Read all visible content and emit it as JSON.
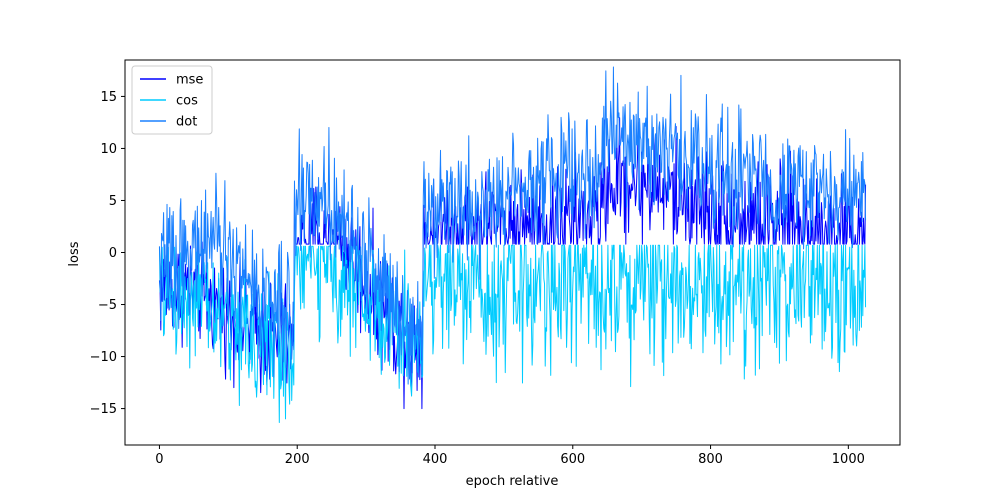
{
  "chart_data": {
    "type": "line",
    "title": "",
    "xlabel": "epoch relative",
    "ylabel": "loss",
    "xlim": [
      -50,
      1075
    ],
    "ylim": [
      -18.5,
      18.5
    ],
    "xticks": [
      0,
      200,
      400,
      600,
      800,
      1000
    ],
    "yticks": [
      -15,
      -10,
      -5,
      0,
      5,
      10,
      15
    ],
    "grid": false,
    "legend": "upper left",
    "x_range": [
      0,
      1025
    ],
    "series": [
      {
        "name": "mse",
        "color": "#0000ff",
        "envelope": {
          "x": [
            0,
            50,
            100,
            150,
            195,
            196,
            260,
            300,
            350,
            382,
            383,
            450,
            500,
            550,
            600,
            640,
            645,
            700,
            750,
            800,
            850,
            900,
            950,
            1000,
            1025
          ],
          "center": [
            -3.5,
            -3.5,
            -6.0,
            -8.0,
            -9.0,
            1.5,
            1.0,
            -3.0,
            -7.5,
            -8.5,
            2.0,
            2.5,
            2.5,
            2.5,
            3.0,
            3.5,
            6.5,
            7.0,
            5.5,
            4.0,
            3.0,
            2.5,
            2.5,
            2.0,
            1.5
          ],
          "spread": [
            3.0,
            3.0,
            3.0,
            3.5,
            3.5,
            3.5,
            3.5,
            3.5,
            3.5,
            3.5,
            3.5,
            3.5,
            3.5,
            3.5,
            3.5,
            3.5,
            3.5,
            3.5,
            3.5,
            3.5,
            3.5,
            3.5,
            3.5,
            3.5,
            3.5
          ],
          "clip_min": [
            -15,
            -15,
            -15,
            -15,
            -15,
            0.8,
            0.8,
            -15,
            -15,
            -15,
            0.8,
            0.8,
            0.8,
            0.8,
            0.8,
            0.8,
            0.8,
            0.8,
            0.8,
            0.8,
            0.8,
            0.8,
            0.8,
            0.8,
            0.8
          ]
        }
      },
      {
        "name": "cos",
        "color": "#00ccff",
        "envelope": {
          "x": [
            0,
            50,
            100,
            150,
            195,
            196,
            260,
            300,
            350,
            382,
            383,
            450,
            500,
            550,
            600,
            650,
            700,
            750,
            800,
            850,
            900,
            950,
            1000,
            1025
          ],
          "center": [
            -3.5,
            -4.5,
            -6.5,
            -8.5,
            -9.5,
            -0.5,
            -1.5,
            -4.5,
            -8.0,
            -8.5,
            -2.0,
            -3.0,
            -3.0,
            -3.0,
            -2.5,
            -2.0,
            -2.5,
            -2.5,
            -3.0,
            -3.0,
            -3.0,
            -3.0,
            -3.0,
            -3.5
          ],
          "spread": [
            3.5,
            3.5,
            4.0,
            4.5,
            4.5,
            4.0,
            4.0,
            4.0,
            4.0,
            4.0,
            4.5,
            4.5,
            5.0,
            5.0,
            5.0,
            5.0,
            5.0,
            5.0,
            5.0,
            5.0,
            5.0,
            5.0,
            5.0,
            5.0
          ],
          "clip_max": [
            0.5,
            0.5,
            0.5,
            0.5,
            0.5,
            0.6,
            0.6,
            0.6,
            0.6,
            0.6,
            0.7,
            0.7,
            0.7,
            0.7,
            0.7,
            0.7,
            0.7,
            0.7,
            0.7,
            0.7,
            0.7,
            0.7,
            0.7,
            0.7
          ]
        }
      },
      {
        "name": "dot",
        "color": "#1a80ff",
        "envelope": {
          "x": [
            0,
            50,
            70,
            100,
            150,
            195,
            196,
            250,
            300,
            350,
            382,
            383,
            450,
            500,
            510,
            600,
            640,
            645,
            700,
            750,
            800,
            850,
            900,
            950,
            1000,
            1025
          ],
          "center": [
            -1.0,
            0.0,
            1.5,
            -0.5,
            -4.0,
            -6.5,
            5.5,
            5.0,
            -0.5,
            -5.5,
            -7.5,
            5.0,
            4.5,
            4.5,
            7.0,
            7.5,
            8.0,
            11.0,
            10.5,
            9.5,
            8.5,
            7.0,
            6.5,
            6.0,
            5.5,
            5.0
          ],
          "spread": [
            3.5,
            3.5,
            3.5,
            3.5,
            3.5,
            3.5,
            3.5,
            3.5,
            3.5,
            3.5,
            3.5,
            3.5,
            3.5,
            3.5,
            3.5,
            3.5,
            3.5,
            3.5,
            3.5,
            3.5,
            3.5,
            3.5,
            3.5,
            3.5,
            3.5,
            3.5
          ]
        }
      }
    ]
  }
}
